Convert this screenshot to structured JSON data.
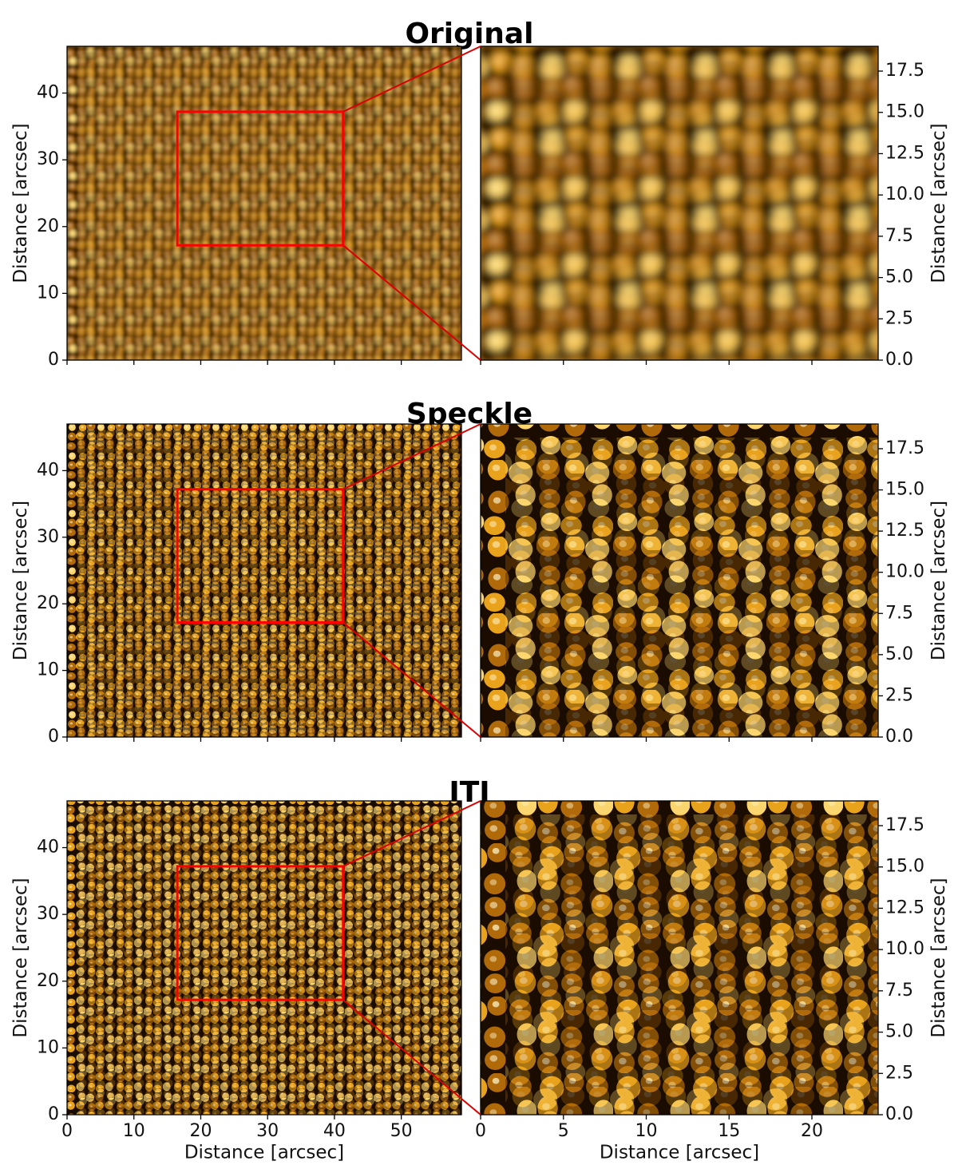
{
  "figure": {
    "colors": {
      "colormap": [
        "#1a0c00",
        "#5e3303",
        "#b06a09",
        "#e9a21c",
        "#fbd66e",
        "#fff4cc"
      ],
      "zoom_box": "#ff0000",
      "connector": "#dd0000"
    },
    "panels": [
      {
        "title": "Original",
        "style": "blurred"
      },
      {
        "title": "Speckle",
        "style": "sharp"
      },
      {
        "title": "ITI",
        "style": "sharp"
      }
    ],
    "left_axes": {
      "ylabel": "Distance [arcsec]",
      "xlabel": "Distance [arcsec]",
      "xlim": [
        0,
        59
      ],
      "ylim": [
        0,
        47
      ],
      "xticks": [
        0,
        10,
        20,
        30,
        40,
        50
      ],
      "xtick_labels": [
        "0",
        "10",
        "20",
        "30",
        "40",
        "50"
      ],
      "yticks": [
        0,
        10,
        20,
        30,
        40
      ],
      "ytick_labels": [
        "0",
        "10",
        "20",
        "30",
        "40"
      ]
    },
    "right_axes": {
      "ylabel": "Distance [arcsec]",
      "xlabel": "Distance [arcsec]",
      "xlim": [
        0,
        24
      ],
      "ylim": [
        0,
        19
      ],
      "xticks": [
        0,
        5,
        10,
        15,
        20
      ],
      "xtick_labels": [
        "0",
        "5",
        "10",
        "15",
        "20"
      ],
      "yticks": [
        0,
        2.5,
        5,
        7.5,
        10,
        12.5,
        15,
        17.5
      ],
      "ytick_labels": [
        "0.0",
        "2.5",
        "5.0",
        "7.5",
        "10.0",
        "12.5",
        "15.0",
        "17.5"
      ]
    },
    "zoom_region": {
      "x": [
        16.5,
        41.3
      ],
      "y": [
        17.2,
        37.2
      ]
    }
  }
}
